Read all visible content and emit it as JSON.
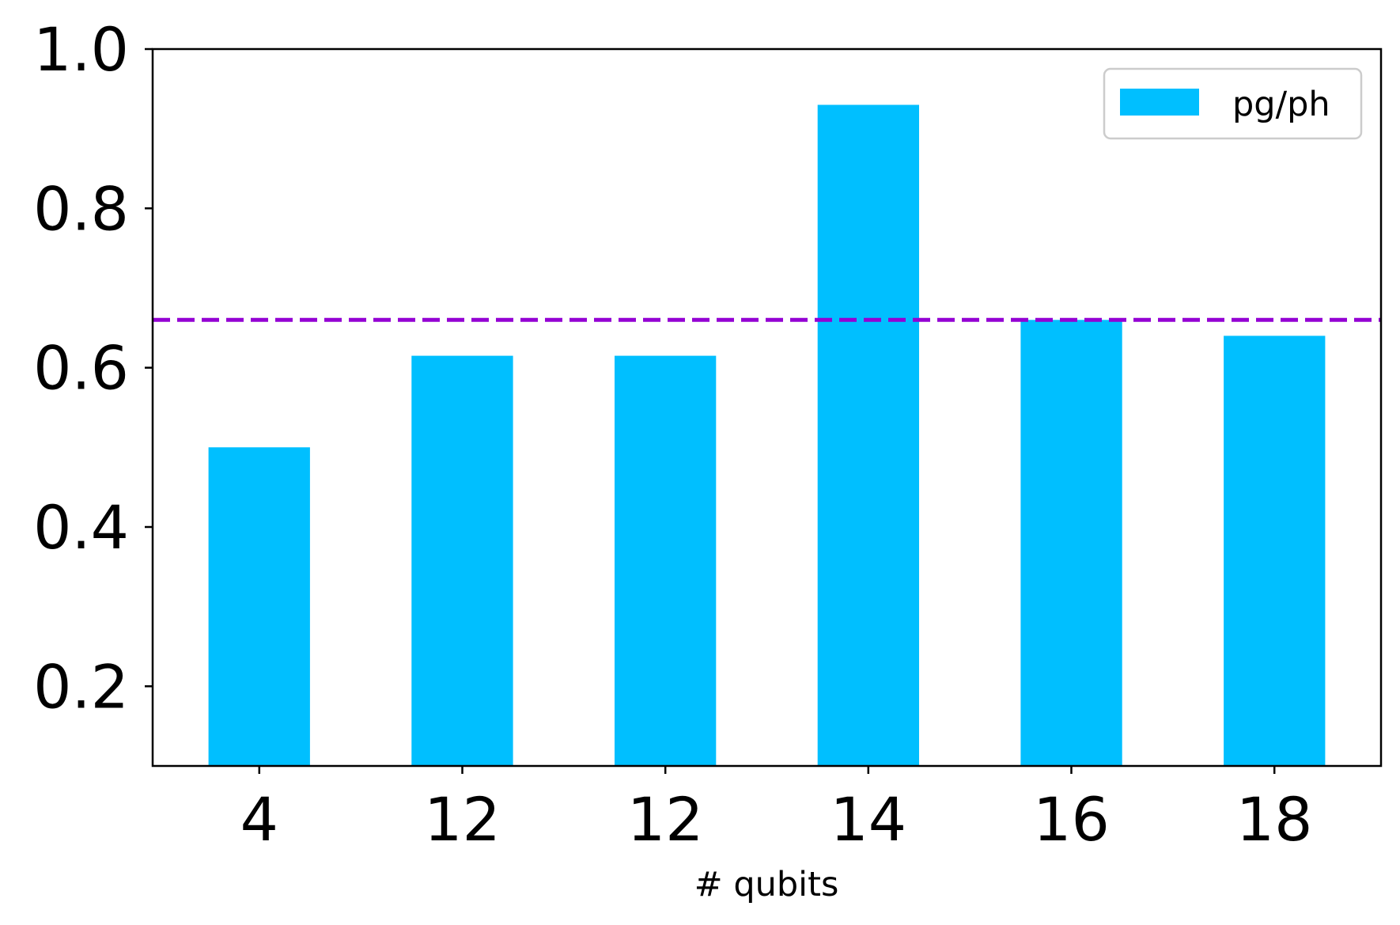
{
  "chart_data": {
    "type": "bar",
    "categories": [
      "4",
      "12",
      "12",
      "14",
      "16",
      "18"
    ],
    "series": [
      {
        "name": "pg/ph",
        "values": [
          0.5,
          0.615,
          0.615,
          0.93,
          0.66,
          0.64
        ],
        "color": "#00bfff"
      }
    ],
    "reference_line": {
      "y": 0.66,
      "style": "dashed",
      "color": "#9400d3"
    },
    "title": "",
    "xlabel": "# qubits",
    "ylabel": "",
    "ylim": [
      0.1,
      1.0
    ],
    "yticks": [
      0.2,
      0.4,
      0.6,
      0.8,
      1.0
    ],
    "ytick_labels": [
      "0.2",
      "0.4",
      "0.6",
      "0.8",
      "1.0"
    ],
    "grid": false,
    "legend_position": "top-right",
    "legend_label": "pg/ph"
  }
}
